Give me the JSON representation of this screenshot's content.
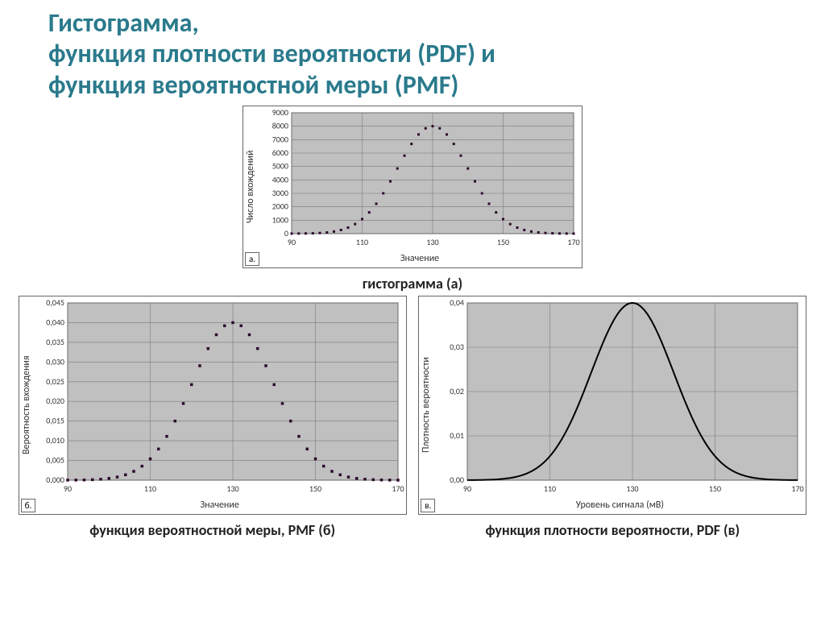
{
  "title_lines": [
    "Гистограмма,",
    "функция плотности вероятности (PDF) и",
    "функция вероятностной меры (PMF)"
  ],
  "title_color": "#2a7a8c",
  "charts": {
    "histogram": {
      "type": "scatter",
      "panel_letter": "а.",
      "xlabel": "Значение",
      "ylabel": "Число вхождений",
      "xlim": [
        90,
        170
      ],
      "xtick_step": 20,
      "ylim": [
        0,
        9000
      ],
      "ytick_step": 1000,
      "plot_bg": "#c0c0c0",
      "grid_color": "#7a7a7a",
      "marker_color": "#2b0a2b",
      "marker_size": 3,
      "mu": 130,
      "sigma": 10,
      "amplitude": 8000,
      "n_points": 41,
      "caption": "гистограмма (а)"
    },
    "pmf": {
      "type": "scatter",
      "panel_letter": "б.",
      "xlabel": "Значение",
      "ylabel": "Вероятность вхождения",
      "xlim": [
        90,
        170
      ],
      "xtick_step": 20,
      "ylim": [
        0,
        0.045
      ],
      "ytick_step": 0.005,
      "ydecimals": 3,
      "plot_bg": "#c0c0c0",
      "grid_color": "#7a7a7a",
      "marker_color": "#2b0a2b",
      "marker_size": 3.5,
      "mu": 130,
      "sigma": 10,
      "amplitude": 0.04,
      "n_points": 41,
      "caption": "функция вероятностной меры, PMF (б)"
    },
    "pdf": {
      "type": "line",
      "panel_letter": "в.",
      "xlabel": "Уровень сигнала (мВ)",
      "ylabel": "Плотность вероятности",
      "xlim": [
        90,
        170
      ],
      "xtick_step": 20,
      "ylim": [
        0,
        0.04
      ],
      "ytick_step": 0.01,
      "ydecimals": 2,
      "plot_bg": "#c0c0c0",
      "grid_color": "#7a7a7a",
      "line_color": "#000000",
      "line_width": 2,
      "mu": 130,
      "sigma": 10,
      "amplitude": 0.04,
      "n_points": 200,
      "caption": "функция плотности вероятности, PDF (в)"
    }
  },
  "tick_font_size": 10,
  "label_font_size": 12
}
